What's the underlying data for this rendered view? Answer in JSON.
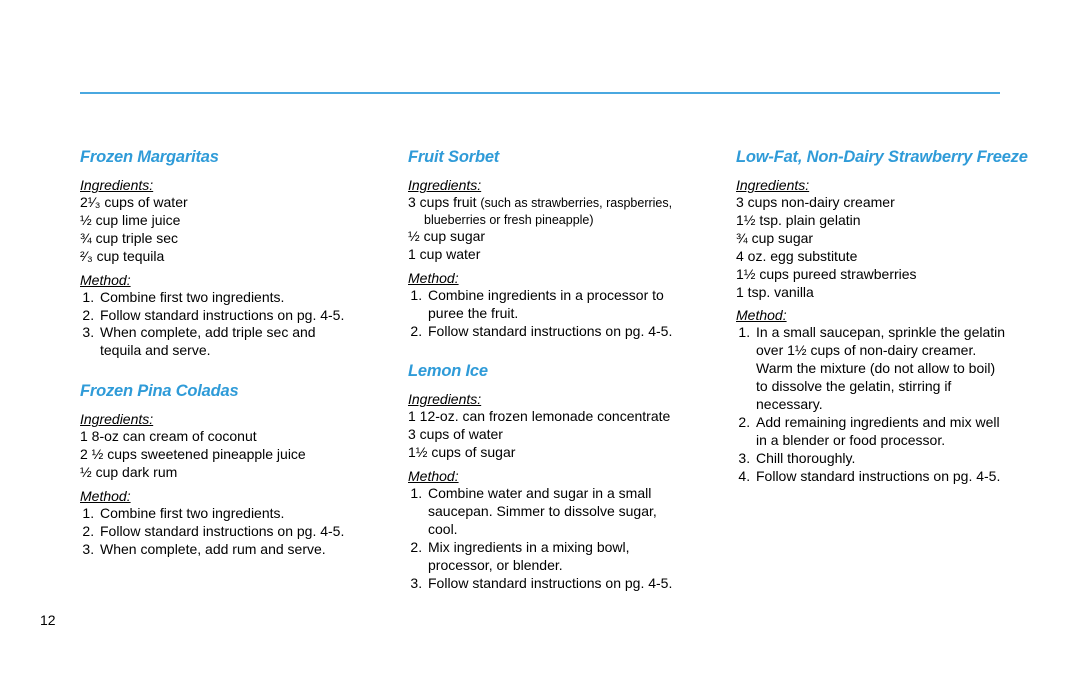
{
  "accent_color": "#2f9bd8",
  "rule_color": "#4aa8e0",
  "page_number": "12",
  "labels": {
    "ingredients": "Ingredients:",
    "method": "Method:"
  },
  "col1": {
    "r1": {
      "title": "Frozen Margaritas",
      "ing": [
        "2¹∕₃ cups of water",
        "½ cup lime juice",
        "¾ cup triple sec",
        "²∕₃ cup tequila"
      ],
      "steps": [
        "Combine first two ingredients.",
        "Follow standard instructions on pg. 4-5.",
        "When complete, add triple sec and",
        "tequila and serve."
      ]
    },
    "r2": {
      "title": "Frozen Pina Coladas",
      "ing": [
        "1 8-oz can cream of coconut",
        "2 ½ cups sweetened pineapple juice",
        "½ cup dark rum"
      ],
      "steps": [
        "Combine first two ingredients.",
        "Follow standard instructions on pg. 4-5.",
        "When complete, add rum and serve."
      ]
    }
  },
  "col2": {
    "r1": {
      "title": "Fruit Sorbet",
      "ing": [
        "3 cups fruit",
        "½ cup sugar",
        "1 cup water"
      ],
      "ing_note": "(such as strawberries, raspberries, blueberries or fresh pineapple)",
      "steps": [
        "Combine ingredients in a processor to",
        "puree the fruit.",
        "Follow standard instructions on pg. 4-5."
      ]
    },
    "r2": {
      "title": "Lemon Ice",
      "ing": [
        "1 12-oz. can frozen lemonade concentrate",
        "3 cups of water",
        "1½ cups of sugar"
      ],
      "steps": [
        "Combine water and sugar in a small",
        "saucepan. Simmer to dissolve sugar,",
        "cool.",
        "Mix ingredients in a mixing bowl,",
        "processor, or blender.",
        "Follow standard instructions on pg. 4-5."
      ]
    }
  },
  "col3": {
    "r1": {
      "title": "Low-Fat, Non-Dairy Strawberry Freeze",
      "ing": [
        "3 cups non-dairy creamer",
        "1½ tsp. plain gelatin",
        "¾ cup sugar",
        "4 oz. egg substitute",
        "1½ cups pureed strawberries",
        "1 tsp. vanilla"
      ],
      "steps": [
        "In a small saucepan, sprinkle the gelatin",
        "over 1½ cups of non-dairy creamer.",
        "Warm the mixture (do not allow to boil)",
        "to dissolve the gelatin, stirring if",
        "necessary.",
        "Add remaining ingredients and mix well",
        "in a blender or food processor.",
        "Chill thoroughly.",
        "Follow standard instructions on pg. 4-5."
      ]
    }
  }
}
